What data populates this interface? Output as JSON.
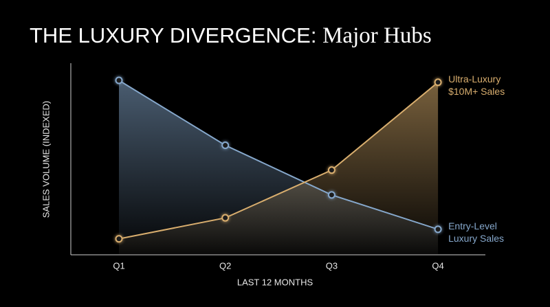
{
  "chart_data": {
    "type": "line",
    "title": "THE LUXURY DIVERGENCE:",
    "title_emphasis": "Major Hubs",
    "x_label": "LAST 12 MONTHS",
    "y_label": "SALES VOLUME (INDEXED)",
    "categories": [
      "Q1",
      "Q2",
      "Q3",
      "Q4"
    ],
    "series": [
      {
        "name": "Entry-Level Luxury Sales",
        "color": "#86a8cc",
        "values": [
          91,
          57,
          31,
          13
        ]
      },
      {
        "name": "Ultra-Luxury $10M+ Sales",
        "color": "#d9ae6e",
        "values": [
          8,
          19,
          44,
          90
        ]
      }
    ],
    "ylim": [
      0,
      100
    ]
  }
}
